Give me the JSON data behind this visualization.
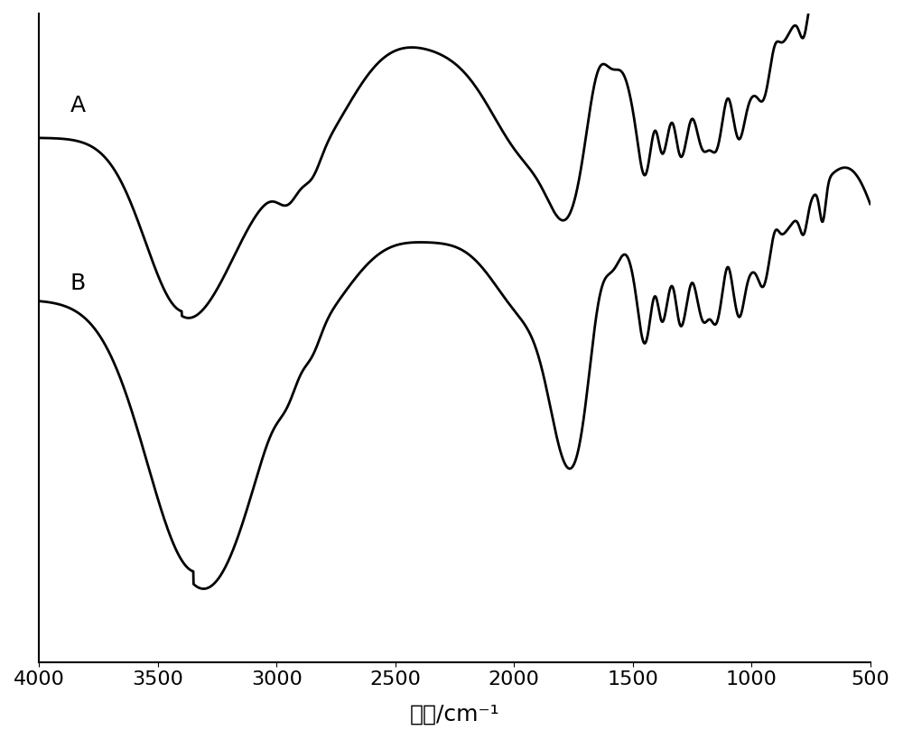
{
  "x_min": 500,
  "x_max": 4000,
  "x_ticks": [
    4000,
    3500,
    3000,
    2500,
    2000,
    1500,
    1000,
    500
  ],
  "xlabel": "波数/cm⁻¹",
  "background_color": "#ffffff",
  "line_color": "#000000",
  "line_width": 2.0,
  "label_A": "A",
  "label_B": "B",
  "label_fontsize": 18,
  "tick_fontsize": 16
}
